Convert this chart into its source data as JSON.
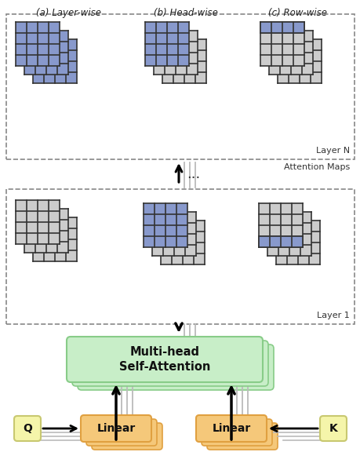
{
  "bg_color": "#ffffff",
  "blue_color": "#8899cc",
  "gray_light": "#cccccc",
  "green_box": "#c8eec8",
  "green_border": "#88cc88",
  "orange_box": "#f5c87a",
  "orange_border": "#e0a040",
  "yellow_box": "#f5f5aa",
  "yellow_border": "#c8c870",
  "dashed_border": "#888888",
  "label_a": "(a) Layer-wise",
  "label_b": "(b) Head-wise",
  "label_c": "(c) Row-wise",
  "label_layerN": "Layer N",
  "label_layer1": "Layer 1",
  "label_attn": "Attention Maps",
  "label_mhsa": "Multi-head\nSelf-Attention",
  "label_linear": "Linear",
  "label_q": "Q",
  "label_k": "K",
  "label_dots": "..."
}
